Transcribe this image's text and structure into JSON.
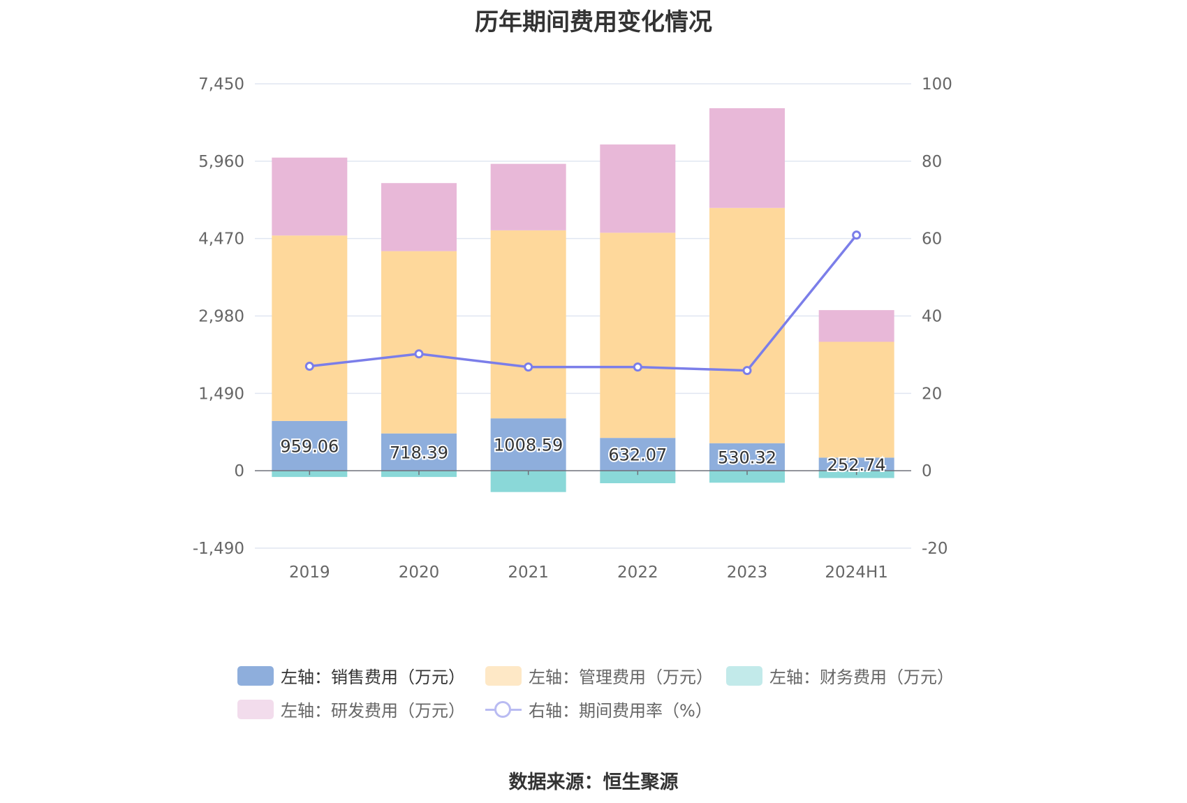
{
  "title": "历年期间费用变化情况",
  "source": "数据来源：恒生聚源",
  "chart_data": {
    "type": "bar",
    "stacked": true,
    "categories": [
      "2019",
      "2020",
      "2021",
      "2022",
      "2023",
      "2024H1"
    ],
    "left_axis": {
      "ylim": [
        -1490,
        7450
      ],
      "ticks": [
        "7,450",
        "5,960",
        "4,470",
        "2,980",
        "1,490",
        "0",
        "-1,490"
      ],
      "tick_values": [
        7450,
        5960,
        4470,
        2980,
        1490,
        0,
        -1490
      ]
    },
    "right_axis": {
      "ylim": [
        -20,
        100
      ],
      "ticks": [
        "100",
        "80",
        "60",
        "40",
        "20",
        "0",
        "-20"
      ],
      "tick_values": [
        100,
        80,
        60,
        40,
        20,
        0,
        -20
      ]
    },
    "grid": true,
    "legend_position": "bottom",
    "series": [
      {
        "name": "左轴：销售费用（万元）",
        "axis": "left",
        "color": "#8eaedc",
        "values": [
          959.06,
          718.39,
          1008.59,
          632.07,
          530.32,
          252.74
        ],
        "labels_shown": true
      },
      {
        "name": "左轴：管理费用（万元）",
        "axis": "left",
        "color": "#fed89b",
        "values": [
          3570,
          3510,
          3620,
          3950,
          4530,
          2230
        ]
      },
      {
        "name": "左轴：财务费用（万元）",
        "axis": "left",
        "color": "#8ad8d8",
        "values": [
          -120,
          -120,
          -410,
          -240,
          -230,
          -140
        ]
      },
      {
        "name": "左轴：研发费用（万元）",
        "axis": "left",
        "color": "#e8b8d8",
        "values": [
          1500,
          1310,
          1280,
          1700,
          1920,
          610
        ]
      },
      {
        "name": "右轴：期间费用率（%）",
        "axis": "right",
        "type": "line",
        "color": "#7b7ee9",
        "values": [
          27.0,
          30.2,
          26.8,
          26.8,
          25.9,
          60.9
        ]
      }
    ]
  }
}
